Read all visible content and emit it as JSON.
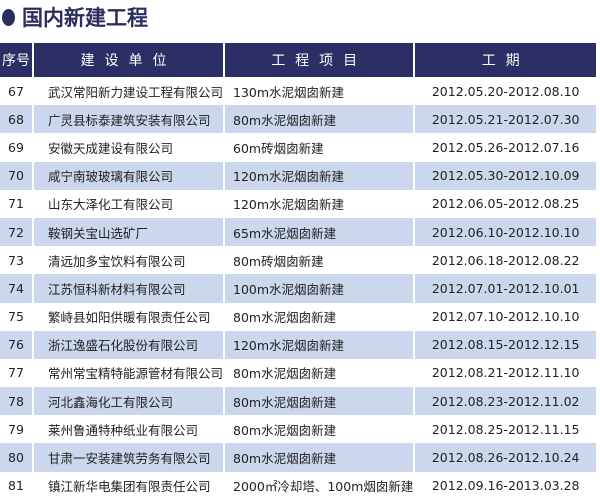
{
  "title": "国内新建工程",
  "colors": {
    "header_bg": "#2c2f66",
    "alt_row_bg": "#cbd7ec",
    "title_color": "#2b2d5e"
  },
  "table": {
    "headers": [
      "序号",
      "建设单位",
      "工程项目",
      "工期"
    ],
    "rows": [
      {
        "seq": "67",
        "unit": "武汉常阳新力建设工程有限公司",
        "project": "130m水泥烟囱新建",
        "period": "2012.05.20-2012.08.10"
      },
      {
        "seq": "68",
        "unit": "广灵县标泰建筑安装有限公司",
        "project": "80m水泥烟囱新建",
        "period": "2012.05.21-2012.07.30"
      },
      {
        "seq": "69",
        "unit": "安徽天成建设有限公司",
        "project": "60m砖烟囱新建",
        "period": "2012.05.26-2012.07.16"
      },
      {
        "seq": "70",
        "unit": "咸宁南玻玻璃有限公司",
        "project": "120m水泥烟囱新建",
        "period": "2012.05.30-2012.10.09"
      },
      {
        "seq": "71",
        "unit": "山东大泽化工有限公司",
        "project": "120m水泥烟囱新建",
        "period": "2012.06.05-2012.08.25"
      },
      {
        "seq": "72",
        "unit": "鞍钢关宝山选矿厂",
        "project": "65m水泥烟囱新建",
        "period": "2012.06.10-2012.10.10"
      },
      {
        "seq": "73",
        "unit": "清远加多宝饮料有限公司",
        "project": "80m砖烟囱新建",
        "period": "2012.06.18-2012.08.22"
      },
      {
        "seq": "74",
        "unit": "江苏恒科新材料有限公司",
        "project": "100m水泥烟囱新建",
        "period": "2012.07.01-2012.10.01"
      },
      {
        "seq": "75",
        "unit": "繁峙县如阳供暖有限责任公司",
        "project": "80m水泥烟囱新建",
        "period": "2012.07.10-2012.10.10"
      },
      {
        "seq": "76",
        "unit": "浙江逸盛石化股份有限公司",
        "project": "120m水泥烟囱新建",
        "period": "2012.08.15-2012.12.15"
      },
      {
        "seq": "77",
        "unit": "常州常宝精特能源管材有限公司",
        "project": "80m水泥烟囱新建",
        "period": "2012.08.21-2012.11.10"
      },
      {
        "seq": "78",
        "unit": "河北鑫海化工有限公司",
        "project": "80m水泥烟囱新建",
        "period": "2012.08.23-2012.11.02"
      },
      {
        "seq": "79",
        "unit": "莱州鲁通特种纸业有限公司",
        "project": "80m水泥烟囱新建",
        "period": "2012.08.25-2012.11.15"
      },
      {
        "seq": "80",
        "unit": "甘肃一安装建筑劳务有限公司",
        "project": "80m水泥烟囱新建",
        "period": "2012.08.26-2012.10.24"
      },
      {
        "seq": "81",
        "unit": "镇江新华电集团有限责任公司",
        "project": "2000㎡冷却塔、100m烟囱新建",
        "period": "2012.09.16-2013.03.28"
      }
    ]
  }
}
